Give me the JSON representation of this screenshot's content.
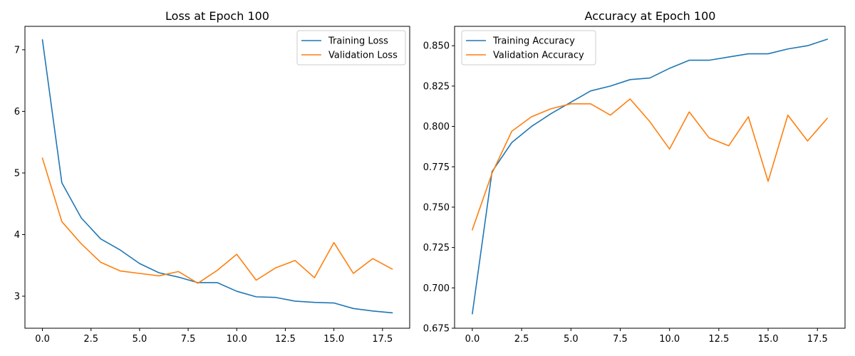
{
  "chart_data": [
    {
      "type": "line",
      "title": "Loss at Epoch 100",
      "xlabel": "",
      "ylabel": "",
      "x": [
        0,
        1,
        2,
        3,
        4,
        5,
        6,
        7,
        8,
        9,
        10,
        11,
        12,
        13,
        14,
        15,
        16,
        17,
        18
      ],
      "xlim": [
        -0.9,
        18.9
      ],
      "ylim": [
        2.48,
        7.38
      ],
      "xticks": [
        0,
        2.5,
        5,
        7.5,
        10,
        12.5,
        15,
        17.5
      ],
      "xtick_labels": [
        "0.0",
        "2.5",
        "5.0",
        "7.5",
        "10.0",
        "12.5",
        "15.0",
        "17.5"
      ],
      "yticks": [
        3,
        4,
        5,
        6,
        7
      ],
      "ytick_labels": [
        "3",
        "4",
        "5",
        "6",
        "7"
      ],
      "grid": false,
      "legend_position": "top-right",
      "series": [
        {
          "name": "Training Loss",
          "color": "#1f77b4",
          "values": [
            7.16,
            4.84,
            4.27,
            3.93,
            3.75,
            3.53,
            3.38,
            3.31,
            3.22,
            3.22,
            3.08,
            2.99,
            2.98,
            2.92,
            2.9,
            2.89,
            2.8,
            2.76,
            2.73
          ]
        },
        {
          "name": "Validation Loss",
          "color": "#ff7f0e",
          "values": [
            5.24,
            4.21,
            3.85,
            3.55,
            3.41,
            3.37,
            3.33,
            3.4,
            3.21,
            3.42,
            3.68,
            3.26,
            3.46,
            3.58,
            3.3,
            3.87,
            3.37,
            3.61,
            3.44
          ]
        }
      ]
    },
    {
      "type": "line",
      "title": "Accuracy at Epoch 100",
      "xlabel": "",
      "ylabel": "",
      "x": [
        0,
        1,
        2,
        3,
        4,
        5,
        6,
        7,
        8,
        9,
        10,
        11,
        12,
        13,
        14,
        15,
        16,
        17,
        18
      ],
      "xlim": [
        -0.9,
        18.9
      ],
      "ylim": [
        0.675,
        0.862
      ],
      "xticks": [
        0,
        2.5,
        5,
        7.5,
        10,
        12.5,
        15,
        17.5
      ],
      "xtick_labels": [
        "0.0",
        "2.5",
        "5.0",
        "7.5",
        "10.0",
        "12.5",
        "15.0",
        "17.5"
      ],
      "yticks": [
        0.675,
        0.7,
        0.725,
        0.75,
        0.775,
        0.8,
        0.825,
        0.85
      ],
      "ytick_labels": [
        "0.675",
        "0.700",
        "0.725",
        "0.750",
        "0.775",
        "0.800",
        "0.825",
        "0.850"
      ],
      "grid": false,
      "legend_position": "top-left",
      "series": [
        {
          "name": "Training Accuracy",
          "color": "#1f77b4",
          "values": [
            0.684,
            0.772,
            0.79,
            0.8,
            0.808,
            0.815,
            0.822,
            0.825,
            0.829,
            0.83,
            0.836,
            0.841,
            0.841,
            0.843,
            0.845,
            0.845,
            0.848,
            0.85,
            0.854
          ]
        },
        {
          "name": "Validation Accuracy",
          "color": "#ff7f0e",
          "values": [
            0.736,
            0.771,
            0.797,
            0.806,
            0.811,
            0.814,
            0.814,
            0.807,
            0.817,
            0.803,
            0.786,
            0.809,
            0.793,
            0.788,
            0.806,
            0.766,
            0.807,
            0.791,
            0.805
          ]
        }
      ]
    }
  ]
}
